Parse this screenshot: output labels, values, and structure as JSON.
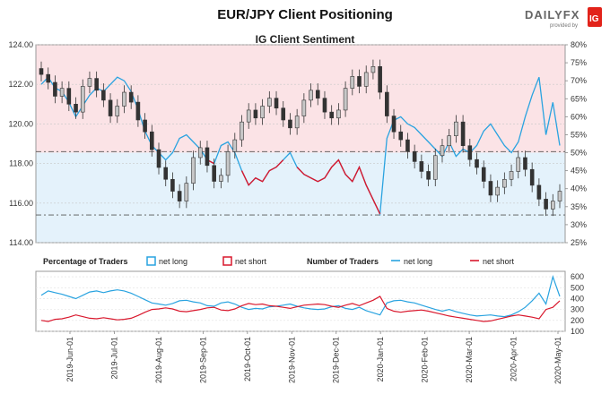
{
  "header": {
    "title": "EUR/JPY Client Positioning",
    "subtitle": "IG Client Sentiment"
  },
  "logo": {
    "text": "DAILYFX",
    "provided_by": "provided by",
    "badge": "IG",
    "accent": "#e2231a"
  },
  "colors": {
    "net_long": "#29a3e0",
    "net_short": "#d9182d",
    "long_zone": "#e4f2fb",
    "short_zone": "#fbe3e6",
    "candle_up": "#c7c7c7",
    "candle_down": "#333333"
  },
  "chart_data": [
    {
      "type": "candlestick",
      "name": "price",
      "title": "IG Client Sentiment",
      "ylim": [
        114,
        124
      ],
      "y_ticks": [
        "124.00",
        "122.00",
        "120.00",
        "118.00",
        "116.00",
        "114.00"
      ],
      "y2_ticks": [
        "80%",
        "75%",
        "70%",
        "65%",
        "60%",
        "55%",
        "50%",
        "45%",
        "40%",
        "35%",
        "30%",
        "25%"
      ],
      "y2lim": [
        25,
        80
      ],
      "x_ticks": [
        "2019-Jun-01",
        "2019-Jul-01",
        "2019-Aug-01",
        "2019-Sep-01",
        "2019-Oct-01",
        "2019-Nov-01",
        "2019-Dec-01",
        "2020-Jan-01",
        "2020-Feb-01",
        "2020-Mar-01",
        "2020-Apr-01",
        "2020-May-01"
      ],
      "price_close": [
        122.5,
        122.1,
        121.4,
        121.8,
        121.0,
        120.6,
        121.9,
        122.3,
        121.7,
        121.2,
        120.4,
        120.9,
        121.6,
        121.1,
        120.2,
        119.6,
        118.7,
        117.8,
        117.2,
        116.6,
        116.1,
        117.0,
        118.3,
        118.8,
        117.9,
        117.1,
        117.4,
        118.6,
        119.2,
        120.1,
        120.7,
        120.3,
        120.9,
        121.3,
        120.8,
        120.2,
        119.8,
        120.4,
        121.2,
        121.7,
        121.3,
        120.6,
        120.3,
        120.7,
        121.8,
        122.4,
        121.9,
        122.6,
        122.9,
        121.6,
        120.4,
        119.6,
        119.2,
        118.6,
        118.1,
        117.6,
        117.2,
        118.4,
        118.9,
        119.4,
        120.1,
        118.9,
        118.2,
        117.8,
        117.1,
        116.4,
        116.8,
        117.2,
        117.6,
        118.3,
        117.7,
        116.9,
        116.2,
        115.7,
        116.1,
        116.6
      ],
      "net_long_pct": [
        69,
        71,
        68,
        67,
        64,
        60,
        63,
        66,
        68,
        67,
        69,
        71,
        70,
        67,
        62,
        56,
        52,
        50,
        48,
        50,
        54,
        55,
        53,
        51,
        48,
        47,
        52,
        53,
        50,
        45,
        41,
        43,
        42,
        45,
        46,
        48,
        50,
        46,
        44,
        43,
        42,
        43,
        46,
        48,
        44,
        42,
        46,
        41,
        37,
        33,
        54,
        59,
        60,
        58,
        57,
        55,
        53,
        51,
        49,
        53,
        49,
        51,
        50,
        52,
        56,
        58,
        55,
        52,
        50,
        53,
        60,
        66,
        71,
        55,
        64,
        52
      ],
      "net_short_pct": [
        31,
        29,
        32,
        33,
        36,
        40,
        37,
        34,
        32,
        33,
        31,
        29,
        30,
        33,
        38,
        44,
        48,
        50,
        52,
        50,
        46,
        45,
        47,
        49,
        52,
        53,
        48,
        47,
        50,
        55,
        59,
        57,
        58,
        55,
        54,
        52,
        50,
        54,
        56,
        57,
        58,
        57,
        54,
        52,
        56,
        58,
        54,
        59,
        63,
        67,
        46,
        41,
        40,
        42,
        43,
        45,
        47,
        49,
        51,
        47,
        51,
        49,
        50,
        48,
        44,
        42,
        45,
        48,
        50,
        47,
        40,
        34,
        29,
        45,
        36,
        48
      ],
      "reference_levels": [
        118.6,
        115.4
      ]
    },
    {
      "type": "line",
      "name": "Number of Traders",
      "ylim": [
        100,
        650
      ],
      "y_ticks": [
        "600",
        "500",
        "400",
        "300",
        "200",
        "100"
      ],
      "net_long": [
        430,
        470,
        455,
        440,
        420,
        400,
        430,
        460,
        470,
        455,
        470,
        480,
        470,
        450,
        420,
        390,
        360,
        350,
        340,
        355,
        380,
        385,
        370,
        360,
        335,
        330,
        360,
        370,
        350,
        320,
        300,
        310,
        305,
        325,
        330,
        340,
        350,
        330,
        315,
        305,
        300,
        305,
        325,
        335,
        310,
        300,
        320,
        290,
        270,
        250,
        360,
        380,
        385,
        370,
        360,
        340,
        320,
        300,
        285,
        300,
        280,
        265,
        250,
        240,
        245,
        250,
        240,
        235,
        250,
        280,
        320,
        380,
        450,
        350,
        600,
        420
      ],
      "net_short": [
        200,
        190,
        210,
        215,
        230,
        250,
        235,
        220,
        215,
        225,
        215,
        205,
        210,
        220,
        245,
        275,
        300,
        305,
        315,
        305,
        285,
        280,
        290,
        300,
        315,
        320,
        295,
        290,
        305,
        335,
        355,
        345,
        350,
        335,
        330,
        320,
        310,
        325,
        340,
        345,
        350,
        345,
        330,
        320,
        340,
        355,
        335,
        360,
        385,
        420,
        310,
        285,
        275,
        285,
        290,
        295,
        285,
        270,
        255,
        240,
        230,
        220,
        210,
        200,
        190,
        195,
        210,
        225,
        240,
        250,
        240,
        230,
        215,
        300,
        320,
        380
      ]
    }
  ],
  "legend": {
    "pct_title": "Percentage of Traders",
    "pct_long": "net long",
    "pct_short": "net short",
    "num_title": "Number of Traders",
    "num_long": "net long",
    "num_short": "net short"
  }
}
